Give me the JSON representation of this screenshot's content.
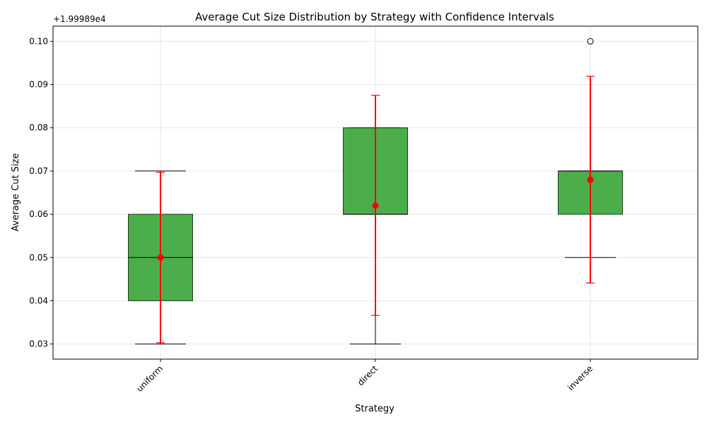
{
  "chart_data": {
    "type": "boxplot",
    "title": "Average Cut Size Distribution by Strategy with Confidence Intervals",
    "xlabel": "Strategy",
    "ylabel": "Average Cut Size",
    "offset_label": "+1.99989e4",
    "categories": [
      "uniform",
      "direct",
      "inverse"
    ],
    "ylim": [
      0.0265,
      0.1035
    ],
    "yticks": [
      0.03,
      0.04,
      0.05,
      0.06,
      0.07,
      0.08,
      0.09,
      0.1
    ],
    "ytick_labels": [
      "0.03",
      "0.04",
      "0.05",
      "0.06",
      "0.07",
      "0.08",
      "0.09",
      "0.10"
    ],
    "grid": true,
    "boxes": [
      {
        "category": "uniform",
        "whisker_low": 0.03,
        "q1": 0.04,
        "median": 0.05,
        "q3": 0.06,
        "whisker_high": 0.07,
        "mean": 0.05,
        "ci_low": 0.0303,
        "ci_high": 0.0697,
        "outliers": []
      },
      {
        "category": "direct",
        "whisker_low": 0.03,
        "q1": 0.06,
        "median": 0.06,
        "q3": 0.08,
        "whisker_high": 0.08,
        "mean": 0.062,
        "ci_low": 0.0366,
        "ci_high": 0.0875,
        "outliers": []
      },
      {
        "category": "inverse",
        "whisker_low": 0.05,
        "q1": 0.06,
        "median": 0.07,
        "q3": 0.07,
        "whisker_high": 0.07,
        "mean": 0.068,
        "ci_low": 0.0441,
        "ci_high": 0.0919,
        "outliers": [
          0.1
        ]
      }
    ],
    "colors": {
      "box_fill": "#2ca02c",
      "box_edge": "#1f3a1f",
      "ci": "#ff0000",
      "mean": "#ff0000",
      "grid": "#e6e6e6"
    }
  }
}
